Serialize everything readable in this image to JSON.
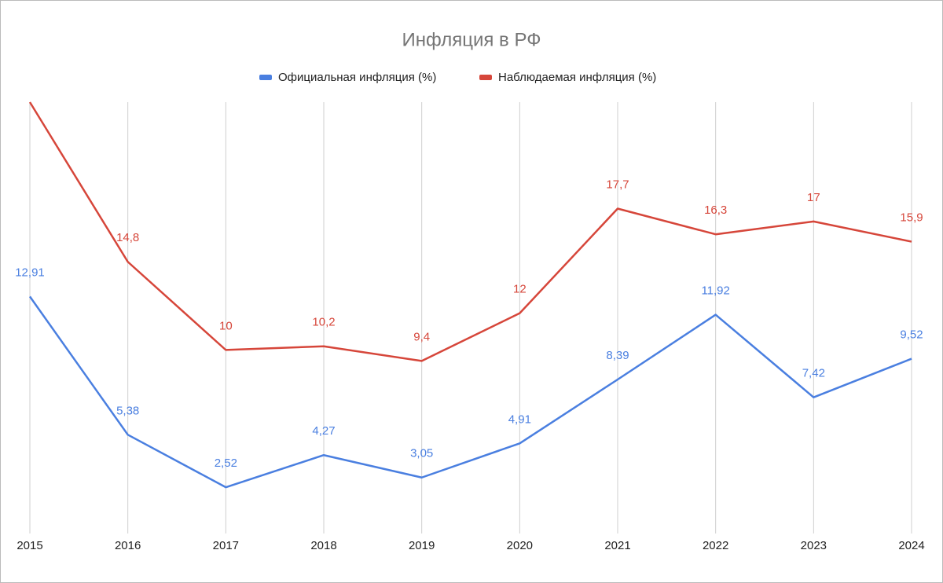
{
  "chart_data": {
    "type": "line",
    "title": "Инфляция в РФ",
    "categories": [
      "2015",
      "2016",
      "2017",
      "2018",
      "2019",
      "2020",
      "2021",
      "2022",
      "2023",
      "2024"
    ],
    "series": [
      {
        "name": "Официальная инфляция (%)",
        "color": "#4a7fe0",
        "values": [
          12.91,
          5.38,
          2.52,
          4.27,
          3.05,
          4.91,
          8.39,
          11.92,
          7.42,
          9.52
        ],
        "value_labels": [
          "12,91",
          "5,38",
          "2,52",
          "4,27",
          "3,05",
          "4,91",
          "8,39",
          "11,92",
          "7,42",
          "9,52"
        ]
      },
      {
        "name": "Наблюдаемая инфляция (%)",
        "color": "#d6463a",
        "values": [
          23.5,
          14.8,
          10,
          10.2,
          9.4,
          12,
          17.7,
          16.3,
          17,
          15.9
        ],
        "value_labels": [
          null,
          "14,8",
          "10",
          "10,2",
          "9,4",
          "12",
          "17,7",
          "16,3",
          "17",
          "15,9"
        ]
      }
    ],
    "ylim": [
      0,
      23.5
    ],
    "grid": true
  }
}
